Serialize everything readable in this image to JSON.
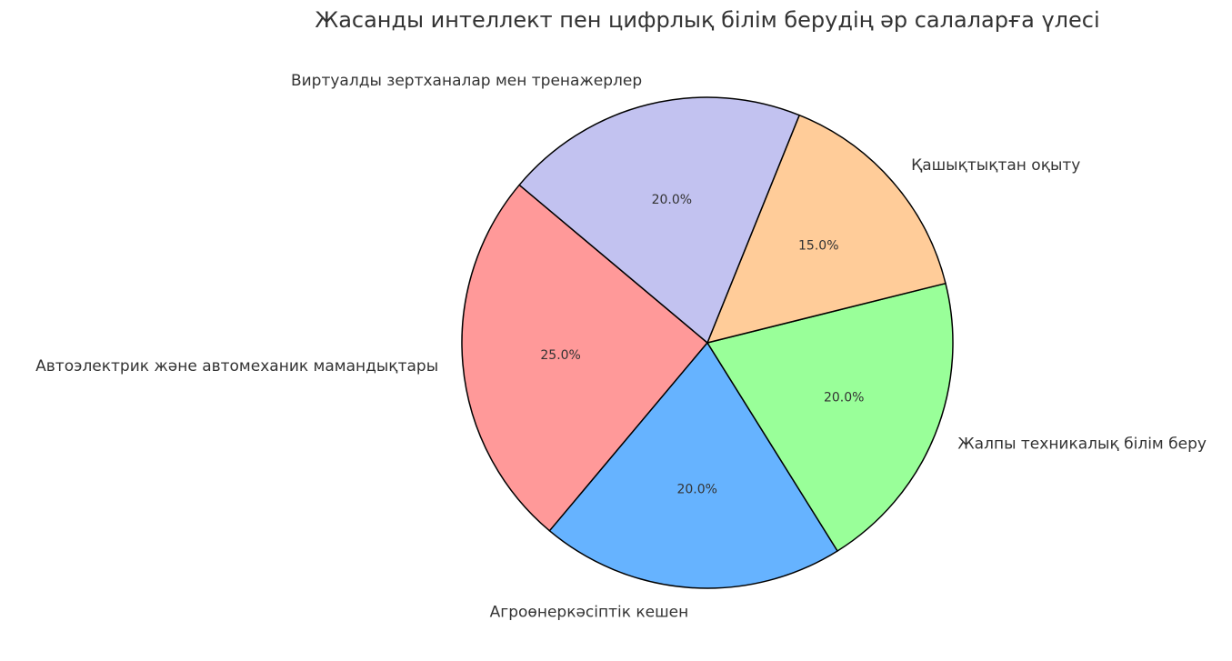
{
  "chart_data": {
    "type": "pie",
    "title": "Жасанды интеллект пен цифрлық білім берудің әр салаларға үлесі",
    "labels": [
      "Автоэлектрик және автомеханик мамандықтары",
      "Агроөнеркәсіптік кешен",
      "Жалпы техникалық білім беру",
      "Қашықтықтан оқыту",
      "Виртуалды зертханалар мен тренажерлер"
    ],
    "values": [
      25,
      20,
      20,
      15,
      20
    ],
    "percent_labels": [
      "25.0%",
      "20.0%",
      "20.0%",
      "15.0%",
      "20.0%"
    ],
    "colors": [
      "#ff9999",
      "#66b3ff",
      "#99ff99",
      "#ffcc99",
      "#c2c2f0"
    ],
    "start_angle_deg": 140,
    "direction": "counterclockwise",
    "edge_color": "#000000",
    "legend": false
  }
}
